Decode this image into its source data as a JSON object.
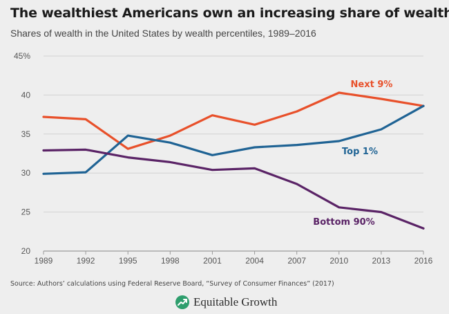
{
  "header": {
    "title": "The wealthiest Americans own an increasing share of wealth",
    "subtitle": "Shares of wealth in the United States by wealth percentiles, 1989–2016"
  },
  "footer": {
    "source": "Source: Authors’ calculations using Federal Reserve Board, “Survey of Consumer Finances” (2017)",
    "brand": "Equitable Growth",
    "brand_icon": "trend-up-icon",
    "brand_color": "#2e9e6d"
  },
  "chart_data": {
    "type": "line",
    "title": "The wealthiest Americans own an increasing share of wealth",
    "subtitle": "Shares of wealth in the United States by wealth percentiles, 1989–2016",
    "xlabel": "",
    "ylabel": "",
    "x": [
      "1989",
      "1992",
      "1995",
      "1998",
      "2001",
      "2004",
      "2007",
      "2010",
      "2013",
      "2016"
    ],
    "ylim": [
      20,
      45
    ],
    "yticks": [
      20,
      25,
      30,
      35,
      40,
      45
    ],
    "ytick_labels": [
      "20",
      "25",
      "30",
      "35",
      "40",
      "45%"
    ],
    "grid": true,
    "legend": "inline labels",
    "series": [
      {
        "name": "Next 9%",
        "color": "#e8502a",
        "values": [
          37.2,
          36.9,
          33.1,
          34.8,
          37.4,
          36.2,
          37.9,
          40.3,
          39.5,
          38.6
        ]
      },
      {
        "name": "Top 1%",
        "color": "#1f6394",
        "values": [
          29.9,
          30.1,
          34.8,
          33.9,
          32.3,
          33.3,
          33.6,
          34.1,
          35.6,
          38.6
        ]
      },
      {
        "name": "Bottom 90%",
        "color": "#5a2366",
        "values": [
          32.9,
          33.0,
          32.0,
          31.4,
          30.4,
          30.6,
          28.6,
          25.6,
          25.0,
          22.9
        ]
      }
    ]
  }
}
